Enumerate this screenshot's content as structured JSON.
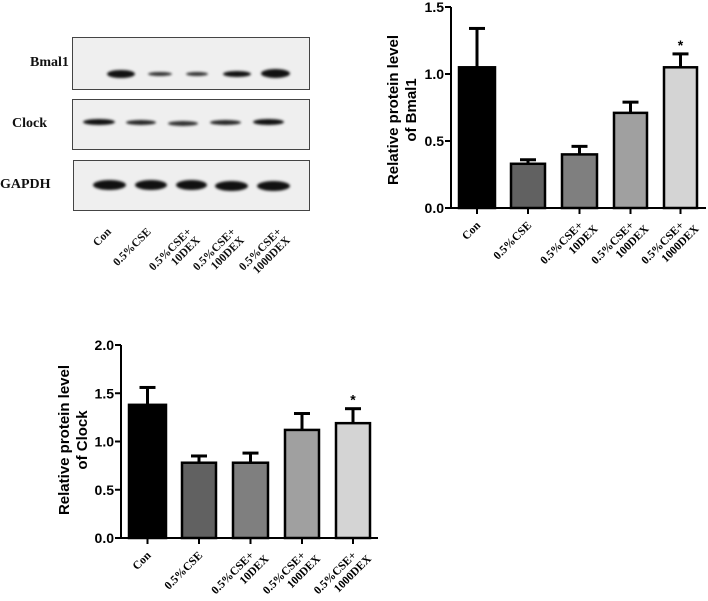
{
  "western_blot": {
    "rows": [
      {
        "label": "Bmal1"
      },
      {
        "label": "Clock"
      },
      {
        "label": "GAPDH"
      }
    ],
    "lane_labels": [
      [
        "Con"
      ],
      [
        "0.5%CSE"
      ],
      [
        "0.5%CSE+",
        "10DEX"
      ],
      [
        "0.5%CSE+",
        "100DEX"
      ],
      [
        "0.5%CSE+",
        "1000DEX"
      ]
    ]
  },
  "chart_data": [
    {
      "type": "bar",
      "title": "",
      "xlabel": "",
      "ylabel": "Relative protein level of Bmal1",
      "ylabel_lines": [
        "Relative protein level",
        "of Bmal1"
      ],
      "categories": [
        "Con",
        "0.5%CSE",
        "0.5%CSE+10DEX",
        "0.5%CSE+100DEX",
        "0.5%CSE+1000DEX"
      ],
      "category_lines": [
        [
          "Con"
        ],
        [
          "0.5%CSE"
        ],
        [
          "0.5%CSE+",
          "10DEX"
        ],
        [
          "0.5%CSE+",
          "100DEX"
        ],
        [
          "0.5%CSE+",
          "1000DEX"
        ]
      ],
      "values": [
        1.05,
        0.33,
        0.4,
        0.71,
        1.05
      ],
      "error_upper": [
        0.29,
        0.03,
        0.06,
        0.08,
        0.1
      ],
      "significance": [
        "",
        "",
        "",
        "",
        "*"
      ],
      "colors": [
        "#000000",
        "#616161",
        "#7f7f7f",
        "#a0a0a0",
        "#d4d4d4"
      ],
      "ylim": [
        0,
        1.5
      ],
      "yticks": [
        0.0,
        0.5,
        1.0,
        1.5
      ],
      "ytick_labels": [
        "0.0",
        "0.5",
        "1.0",
        "1.5"
      ],
      "grid": false,
      "legend": null
    },
    {
      "type": "bar",
      "title": "",
      "xlabel": "",
      "ylabel": "Relative protein level of Clock",
      "ylabel_lines": [
        "Relative protein level",
        "of Clock"
      ],
      "categories": [
        "Con",
        "0.5%CSE",
        "0.5%CSE+10DEX",
        "0.5%CSE+100DEX",
        "0.5%CSE+1000DEX"
      ],
      "category_lines": [
        [
          "Con"
        ],
        [
          "0.5%CSE"
        ],
        [
          "0.5%CSE+",
          "10DEX"
        ],
        [
          "0.5%CSE+",
          "100DEX"
        ],
        [
          "0.5%CSE+",
          "1000DEX"
        ]
      ],
      "values": [
        1.38,
        0.78,
        0.78,
        1.12,
        1.19
      ],
      "error_upper": [
        0.18,
        0.07,
        0.1,
        0.17,
        0.15
      ],
      "significance": [
        "",
        "",
        "",
        "",
        "*"
      ],
      "colors": [
        "#000000",
        "#616161",
        "#7f7f7f",
        "#a0a0a0",
        "#d4d4d4"
      ],
      "ylim": [
        0,
        2.0
      ],
      "yticks": [
        0.0,
        0.5,
        1.0,
        1.5,
        2.0
      ],
      "ytick_labels": [
        "0.0",
        "0.5",
        "1.0",
        "1.5",
        "2.0"
      ],
      "grid": false,
      "legend": null
    }
  ]
}
